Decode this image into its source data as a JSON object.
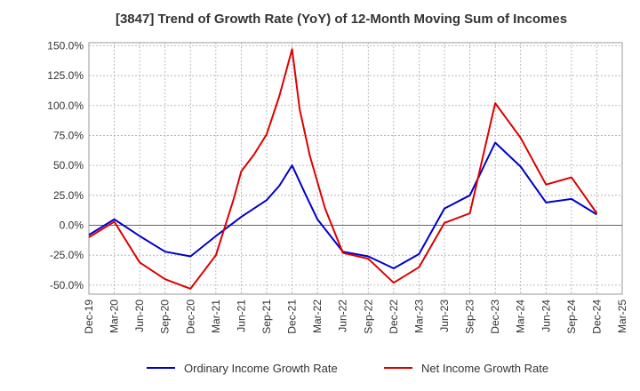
{
  "chart_data": {
    "type": "line",
    "title": "[3847]  Trend of Growth Rate (YoY) of 12-Month Moving Sum of Incomes",
    "xlabel": "",
    "ylabel": "",
    "ylim": [
      -57.5,
      152.5
    ],
    "grid": true,
    "legend_position": "bottom",
    "x_ticks": [
      "Dec-19",
      "Mar-20",
      "Jun-20",
      "Sep-20",
      "Dec-20",
      "Mar-21",
      "Jun-21",
      "Sep-21",
      "Dec-21",
      "Mar-22",
      "Jun-22",
      "Sep-22",
      "Dec-22",
      "Mar-23",
      "Jun-23",
      "Sep-23",
      "Dec-23",
      "Mar-24",
      "Jun-24",
      "Sep-24",
      "Dec-24",
      "Mar-25"
    ],
    "y_ticks": [
      150,
      125,
      100,
      75,
      50,
      25,
      0,
      -25,
      -50
    ],
    "y_tick_labels": [
      "150.0%",
      "125.0%",
      "100.0%",
      "75.0%",
      "50.0%",
      "25.0%",
      "0.0%",
      "-25.0%",
      "-50.0%"
    ],
    "series": [
      {
        "name": "Ordinary Income Growth Rate",
        "color": "#0000cc",
        "points": [
          [
            0,
            -8
          ],
          [
            1,
            5
          ],
          [
            2,
            -9
          ],
          [
            3,
            -22
          ],
          [
            4,
            -26
          ],
          [
            5,
            -9
          ],
          [
            6,
            7
          ],
          [
            7,
            21
          ],
          [
            7.5,
            33
          ],
          [
            8,
            50
          ],
          [
            8.5,
            27
          ],
          [
            9,
            5
          ],
          [
            10,
            -22
          ],
          [
            11,
            -26
          ],
          [
            12,
            -36
          ],
          [
            13,
            -24
          ],
          [
            14,
            14
          ],
          [
            15,
            25
          ],
          [
            16,
            69
          ],
          [
            17,
            49
          ],
          [
            18,
            19
          ],
          [
            19,
            22
          ],
          [
            20,
            9
          ]
        ]
      },
      {
        "name": "Net Income Growth Rate",
        "color": "#dd0000",
        "points": [
          [
            0,
            -10
          ],
          [
            1,
            3
          ],
          [
            2,
            -31
          ],
          [
            3,
            -45
          ],
          [
            4,
            -53
          ],
          [
            5,
            -25
          ],
          [
            5.7,
            22
          ],
          [
            6,
            45
          ],
          [
            6.5,
            59
          ],
          [
            7,
            76
          ],
          [
            7.5,
            108
          ],
          [
            8,
            147
          ],
          [
            8.3,
            97
          ],
          [
            8.7,
            58
          ],
          [
            9.3,
            14
          ],
          [
            10,
            -23
          ],
          [
            11,
            -28
          ],
          [
            12,
            -48
          ],
          [
            13,
            -35
          ],
          [
            14,
            2
          ],
          [
            15,
            10
          ],
          [
            16,
            102
          ],
          [
            17,
            73
          ],
          [
            18,
            34
          ],
          [
            19,
            40
          ],
          [
            20,
            10
          ]
        ]
      }
    ]
  }
}
